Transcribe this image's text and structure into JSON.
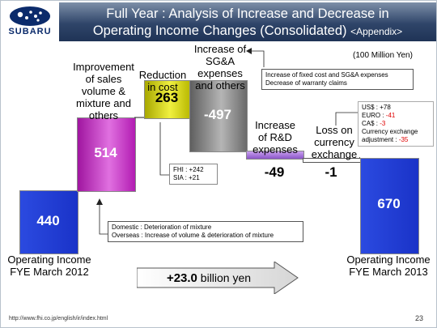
{
  "brand": {
    "name": "SUBARU"
  },
  "header": {
    "title_line1": "Full Year : Analysis of Increase and Decrease in",
    "title_line2": "Operating Income Changes (Consolidated)",
    "title_appendix": "<Appendix>"
  },
  "unit_label": "(100 Million Yen)",
  "chart_data": {
    "type": "waterfall",
    "unit": "100 Million Yen",
    "categories": [
      "Operating Income FYE March 2012",
      "Improvement of sales volume & mixture and others",
      "Reduction in cost",
      "Increase of SG&A expenses and others",
      "Increase of R&D expenses",
      "Loss on currency exchange",
      "Operating Income FYE March 2013"
    ],
    "values": [
      440,
      514,
      263,
      -497,
      -49,
      -1,
      670
    ],
    "value_labels": [
      "440",
      "514",
      "263",
      "-497",
      "-49",
      "-1",
      "670"
    ],
    "bar_kinds": [
      "total",
      "change",
      "change",
      "change",
      "change",
      "change",
      "total"
    ],
    "colors": [
      "#1f3fd8",
      "#b81fb8",
      "#c8c800",
      "#707070",
      "#9966cc",
      "#ffffff",
      "#1f3fd8"
    ]
  },
  "labels": {
    "start_line1": "Operating Income",
    "start_line2": "FYE March 2012",
    "end_line1": "Operating Income",
    "end_line2": "FYE March 2013",
    "improvement": [
      "Improvement",
      "of sales",
      "volume &",
      "mixture and",
      "others"
    ],
    "cost": [
      "Reduction",
      "in cost"
    ],
    "sga": [
      "Increase of",
      "SG&A",
      "expenses",
      "and others"
    ],
    "rd": [
      "Increase",
      "of R&D",
      "expenses"
    ],
    "fx": [
      "Loss on",
      "currency",
      "exchange"
    ]
  },
  "notes": {
    "mixture_line1": "Domestic : Deterioration of mixture",
    "mixture_line2": "Overseas : Increase of volume & deterioration of mixture",
    "cost_line1": "FHI : +242",
    "cost_line2": "SIA : +21",
    "sga_line1": "Increase of fixed cost and SG&A expenses",
    "sga_line2": "Decrease of warranty claims",
    "fx_usd": "US$ : +78",
    "fx_euro_label": "EURO : ",
    "fx_euro_value": "-41",
    "fx_ca_label": "CA$ : ",
    "fx_ca_value": "-3",
    "fx_adj_line1": "Currency exchange",
    "fx_adj_label": "adjustment : ",
    "fx_adj_value": "-35"
  },
  "total_change": {
    "prefix": "+",
    "value": "23.0",
    "suffix": " billion yen"
  },
  "footer": {
    "url": "http://www.fhi.co.jp/english/ir/index.html",
    "page": "23"
  }
}
